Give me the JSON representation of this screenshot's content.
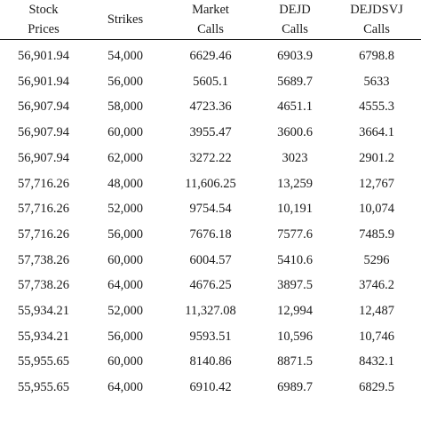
{
  "table": {
    "headers": [
      {
        "line1": "Stock",
        "line2": "Prices"
      },
      {
        "line1": "Strikes",
        "line2": ""
      },
      {
        "line1": "Market",
        "line2": "Calls"
      },
      {
        "line1": "DEJD",
        "line2": "Calls"
      },
      {
        "line1": "DEJDSVJ",
        "line2": "Calls"
      }
    ],
    "rows": [
      [
        "56,901.94",
        "54,000",
        "6629.46",
        "6903.9",
        "6798.8"
      ],
      [
        "56,901.94",
        "56,000",
        "5605.1",
        "5689.7",
        "5633"
      ],
      [
        "56,907.94",
        "58,000",
        "4723.36",
        "4651.1",
        "4555.3"
      ],
      [
        "56,907.94",
        "60,000",
        "3955.47",
        "3600.6",
        "3664.1"
      ],
      [
        "56,907.94",
        "62,000",
        "3272.22",
        "3023",
        "2901.2"
      ],
      [
        "57,716.26",
        "48,000",
        "11,606.25",
        "13,259",
        "12,767"
      ],
      [
        "57,716.26",
        "52,000",
        "9754.54",
        "10,191",
        "10,074"
      ],
      [
        "57,716.26",
        "56,000",
        "7676.18",
        "7577.6",
        "7485.9"
      ],
      [
        "57,738.26",
        "60,000",
        "6004.57",
        "5410.6",
        "5296"
      ],
      [
        "57,738.26",
        "64,000",
        "4676.25",
        "3897.5",
        "3746.2"
      ],
      [
        "55,934.21",
        "52,000",
        "11,327.08",
        "12,994",
        "12,487"
      ],
      [
        "55,934.21",
        "56,000",
        "9593.51",
        "10,596",
        "10,746"
      ],
      [
        "55,955.65",
        "60,000",
        "8140.86",
        "8871.5",
        "8432.1"
      ],
      [
        "55,955.65",
        "64,000",
        "6910.42",
        "6989.7",
        "6829.5"
      ]
    ]
  }
}
